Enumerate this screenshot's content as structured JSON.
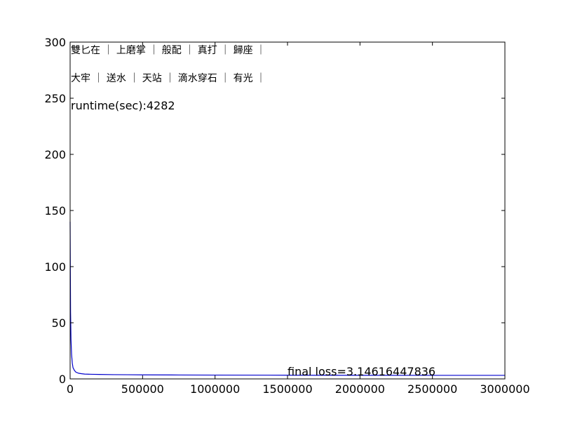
{
  "chart_data": {
    "type": "line",
    "x_ticks": [
      "0",
      "500000",
      "1000000",
      "1500000",
      "2000000",
      "2500000",
      "3000000"
    ],
    "y_ticks": [
      "0",
      "50",
      "100",
      "150",
      "200",
      "250",
      "300"
    ],
    "xlim": [
      0,
      3000000
    ],
    "ylim": [
      0,
      300
    ],
    "grid": false,
    "line_color": "#0000cc",
    "annotations": {
      "line1": "雙匕在 ｜ 上磨掌 ｜ 般配 ｜ 真打 ｜ 歸座 ｜",
      "line2": "大牢 ｜ 送水 ｜ 天站 ｜ 滴水穿石 ｜ 有光 ｜",
      "runtime": "runtime(sec):4282",
      "final_loss": "final loss=3.14616447836"
    },
    "series": [
      {
        "x": [
          0,
          3000,
          6000,
          10000,
          15000,
          20000,
          30000,
          40000,
          60000,
          80000,
          100000,
          150000,
          200000,
          300000,
          400000,
          500000,
          700000,
          1000000,
          1500000,
          2000000,
          2500000,
          3000000
        ],
        "values": [
          140,
          60,
          35,
          22,
          14,
          10,
          7.5,
          6,
          5,
          4.6,
          4.3,
          4.1,
          4.0,
          3.8,
          3.7,
          3.6,
          3.5,
          3.4,
          3.3,
          3.2,
          3.17,
          3.15
        ]
      }
    ]
  }
}
